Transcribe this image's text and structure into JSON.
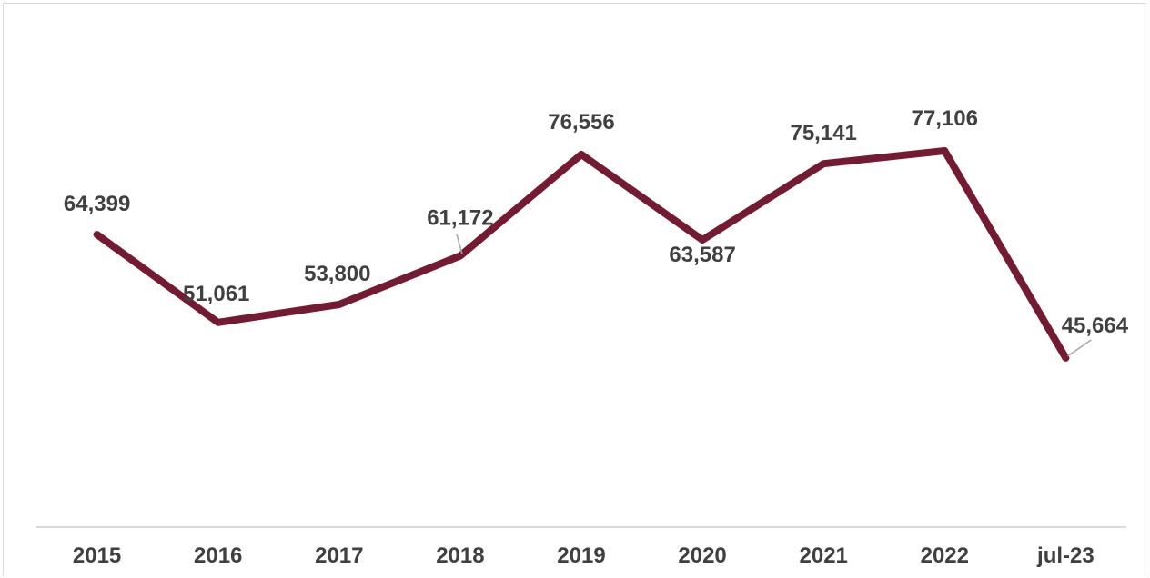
{
  "chart_data": {
    "type": "line",
    "categories": [
      "2015",
      "2016",
      "2017",
      "2018",
      "2019",
      "2020",
      "2021",
      "2022",
      "jul-23"
    ],
    "series": [
      {
        "values": [
          64399,
          51061,
          53800,
          61172,
          76556,
          63587,
          75141,
          77106,
          45664
        ]
      }
    ],
    "data_labels": [
      "64,399",
      "51,061",
      "53,800",
      "61,172",
      "76,556",
      "63,587",
      "75,141",
      "77,106",
      "45,664"
    ],
    "colors": {
      "line": "#741b33",
      "text": "#404040",
      "axis": "#d9d9d9"
    },
    "ylim": [
      20000,
      100000
    ],
    "grid": false,
    "legend": "none"
  }
}
